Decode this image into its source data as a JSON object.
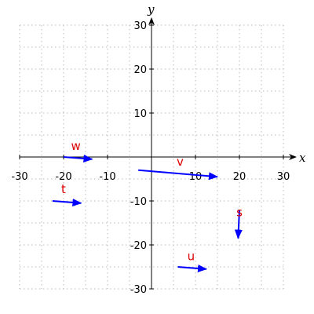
{
  "chart_data": {
    "type": "vector_field",
    "xlabel": "x",
    "ylabel": "y",
    "xlim": [
      -30,
      30
    ],
    "ylim": [
      -30,
      30
    ],
    "x_ticks": [
      -30,
      -20,
      -10,
      10,
      20,
      30
    ],
    "y_ticks": [
      -30,
      -20,
      -10,
      10,
      20,
      30
    ],
    "grid": true,
    "colors": {
      "vector": "#0000ff",
      "label": "#dd0000",
      "grid": "#bbbbbb",
      "axis": "#000000"
    },
    "vectors": [
      {
        "name": "w",
        "start": [
          -20,
          0
        ],
        "end": [
          -13.5,
          -0.5
        ],
        "label_at": [
          -17.2,
          1.6
        ]
      },
      {
        "name": "v",
        "start": [
          -3,
          -3
        ],
        "end": [
          15,
          -4.5
        ],
        "label_at": [
          6.5,
          -2
        ]
      },
      {
        "name": "t",
        "start": [
          -22.5,
          -10
        ],
        "end": [
          -16,
          -10.5
        ],
        "label_at": [
          -20,
          -8.2
        ]
      },
      {
        "name": "s",
        "start": [
          20,
          -12
        ],
        "end": [
          19.7,
          -18.5
        ],
        "label_at": [
          20,
          -13.5
        ]
      },
      {
        "name": "u",
        "start": [
          6,
          -25
        ],
        "end": [
          12.5,
          -25.5
        ],
        "label_at": [
          9,
          -23.5
        ]
      }
    ]
  }
}
